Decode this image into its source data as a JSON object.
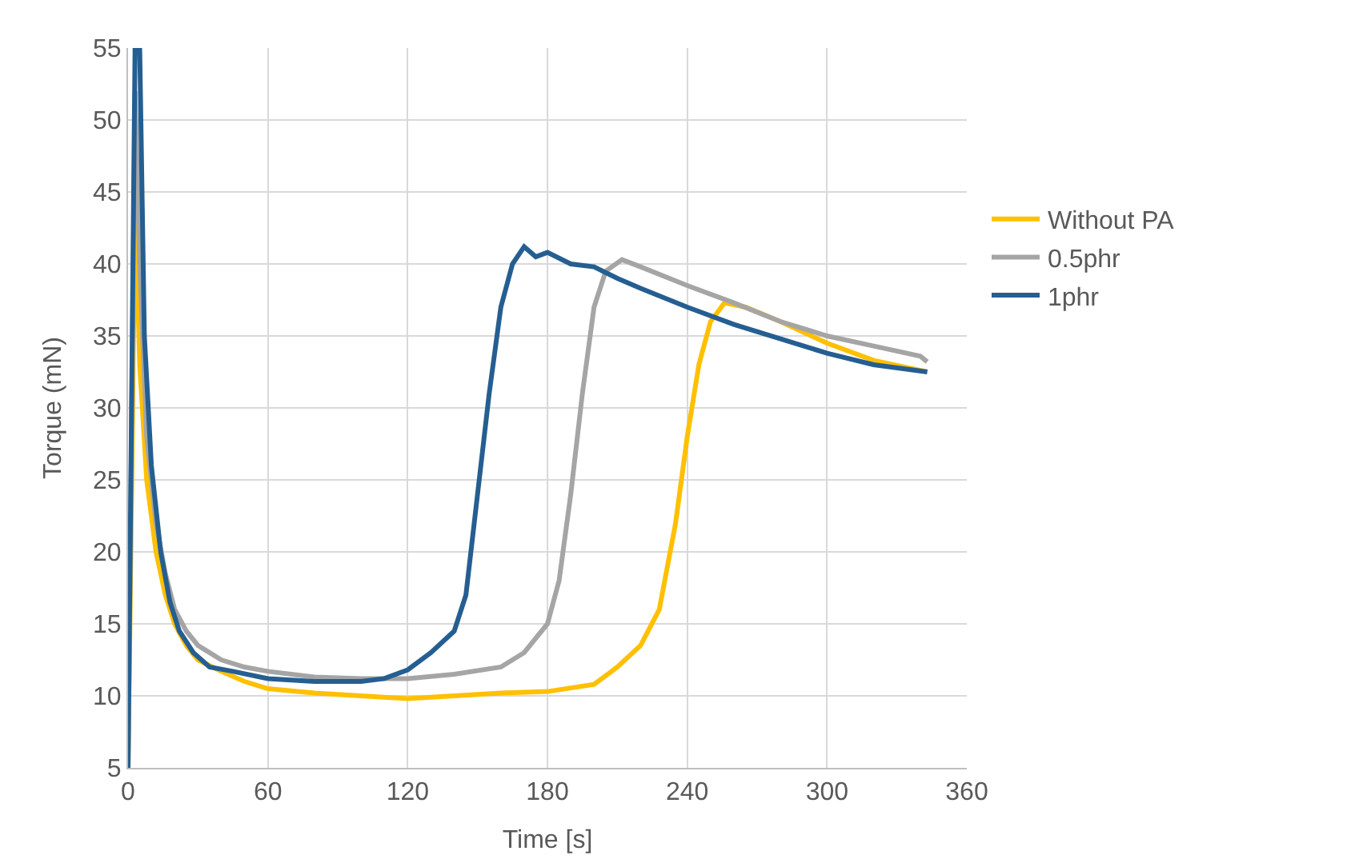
{
  "chart_data": {
    "type": "line",
    "xlabel": "Time [s]",
    "ylabel": "Torque (mN)",
    "xlim": [
      0,
      360
    ],
    "xticks": [
      0,
      60,
      120,
      180,
      240,
      300,
      360
    ],
    "ylim": [
      5,
      55
    ],
    "yticks": [
      5,
      10,
      15,
      20,
      25,
      30,
      35,
      40,
      45,
      50,
      55
    ],
    "grid": true,
    "legend": "right",
    "marker": "none",
    "line_style": "solid",
    "series": [
      {
        "name": "Without PA",
        "color": "#ffc000",
        "x": [
          0,
          2,
          3,
          5,
          8,
          12,
          16,
          20,
          25,
          30,
          40,
          50,
          60,
          80,
          100,
          120,
          140,
          160,
          180,
          200,
          210,
          220,
          228,
          235,
          240,
          245,
          250,
          256,
          265,
          280,
          300,
          320,
          343
        ],
        "values": [
          5,
          30,
          45,
          33,
          25,
          20,
          17,
          15,
          13.5,
          12.5,
          11.7,
          11,
          10.5,
          10.2,
          10,
          9.8,
          10,
          10.2,
          10.3,
          10.8,
          12,
          13.5,
          16,
          22,
          28,
          33,
          36,
          37.3,
          37,
          36,
          34.5,
          33.3,
          32.5
        ]
      },
      {
        "name": "0.5phr",
        "color": "#a5a5a5",
        "x": [
          0,
          3,
          5,
          8,
          12,
          16,
          20,
          25,
          30,
          40,
          50,
          60,
          80,
          100,
          120,
          140,
          160,
          170,
          180,
          185,
          190,
          195,
          200,
          205,
          212,
          220,
          240,
          260,
          280,
          300,
          320,
          340,
          343
        ],
        "values": [
          5,
          52,
          40,
          28,
          22,
          18.5,
          16,
          14.5,
          13.5,
          12.5,
          12,
          11.7,
          11.3,
          11.2,
          11.2,
          11.5,
          12,
          13,
          15,
          18,
          24,
          31,
          37,
          39.5,
          40.3,
          39.8,
          38.5,
          37.3,
          36,
          35,
          34.3,
          33.6,
          33.2
        ]
      },
      {
        "name": "1phr",
        "color": "#255e91",
        "x": [
          0,
          3,
          5,
          7,
          10,
          14,
          18,
          22,
          28,
          35,
          45,
          60,
          80,
          100,
          110,
          120,
          130,
          140,
          145,
          150,
          155,
          160,
          165,
          170,
          175,
          180,
          190,
          200,
          210,
          220,
          240,
          260,
          280,
          300,
          320,
          343
        ],
        "values": [
          5,
          55,
          55,
          35,
          26,
          20,
          16.5,
          14.5,
          13,
          12,
          11.7,
          11.2,
          11,
          11,
          11.2,
          11.8,
          13,
          14.5,
          17,
          24,
          31,
          37,
          40,
          41.2,
          40.5,
          40.8,
          40,
          39.8,
          39,
          38.3,
          37,
          35.8,
          34.8,
          33.8,
          33,
          32.5
        ]
      }
    ]
  }
}
